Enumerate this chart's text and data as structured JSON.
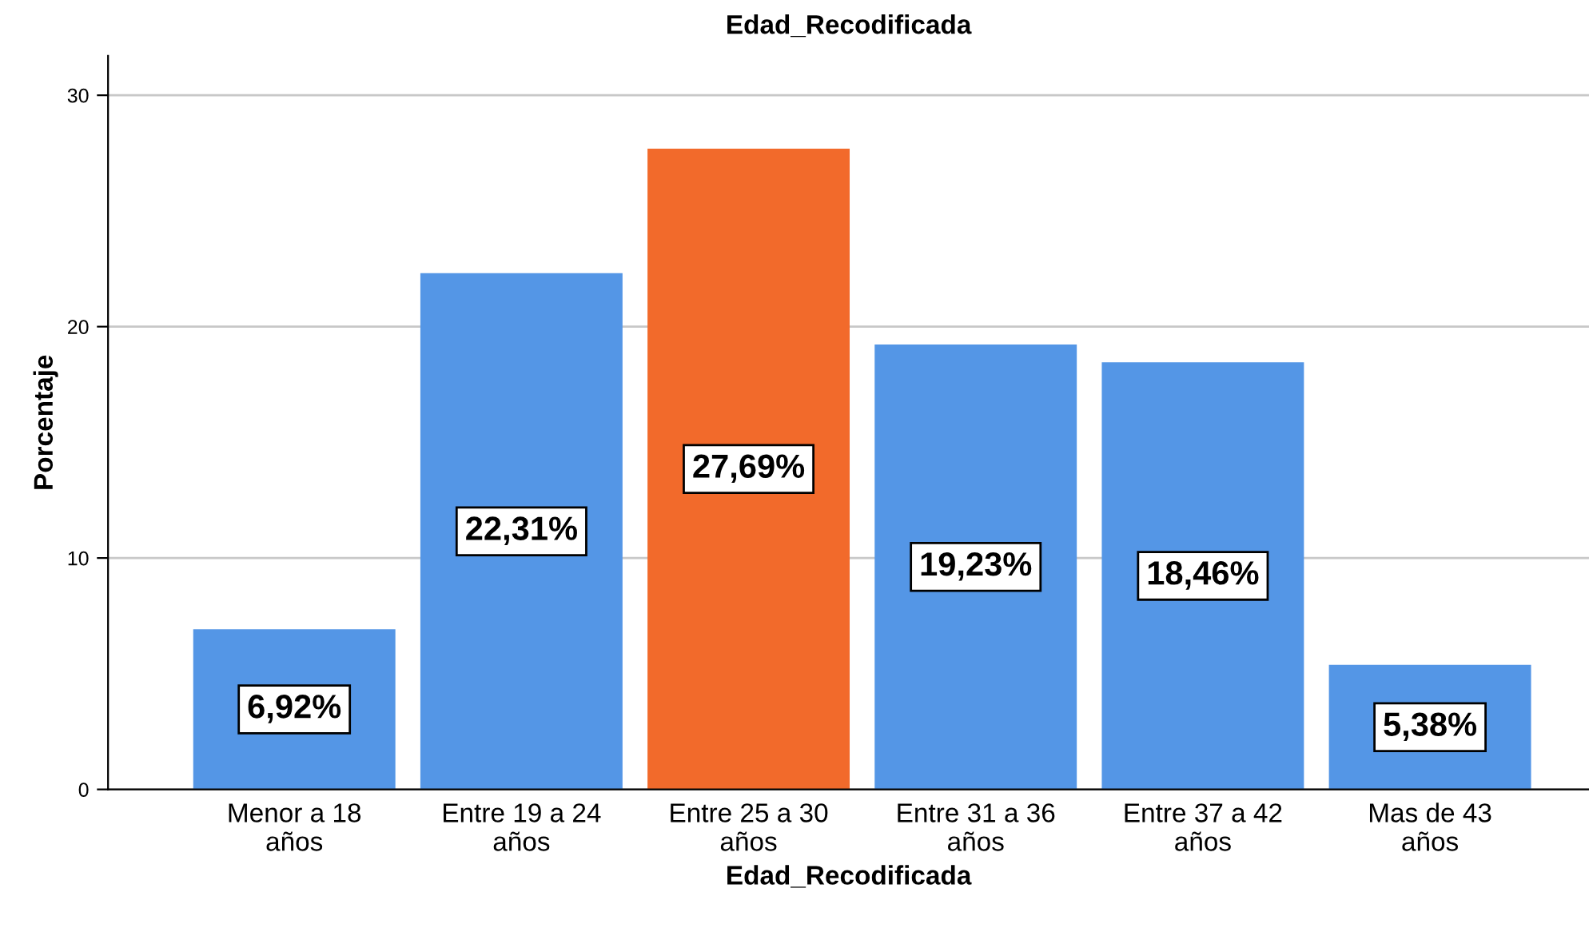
{
  "chart_data": {
    "type": "bar",
    "title": "Edad_Recodificada",
    "xlabel": "Edad_Recodificada",
    "ylabel": "Porcentaje",
    "categories": [
      "Menor a 18\naños",
      "Entre 19 a 24\naños",
      "Entre 25 a 30\naños",
      "Entre 31 a 36\naños",
      "Entre 37 a 42\naños",
      "Mas de 43\naños"
    ],
    "values": [
      6.92,
      22.31,
      27.69,
      19.23,
      18.46,
      5.38
    ],
    "value_labels": [
      "6,92%",
      "22,31%",
      "27,69%",
      "19,23%",
      "18,46%",
      "5,38%"
    ],
    "colors": [
      "#5496e6",
      "#5496e6",
      "#f26a2b",
      "#5496e6",
      "#5496e6",
      "#5496e6"
    ],
    "ylim": [
      0,
      31.7
    ],
    "yticks": [
      0,
      10,
      20,
      30
    ],
    "grid": "y",
    "legend": false
  }
}
